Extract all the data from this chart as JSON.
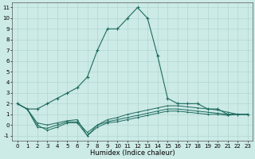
{
  "xlabel": "Humidex (Indice chaleur)",
  "x": [
    0,
    1,
    2,
    3,
    4,
    5,
    6,
    7,
    8,
    9,
    10,
    11,
    12,
    13,
    14,
    15,
    16,
    17,
    18,
    19,
    20,
    21,
    22,
    23
  ],
  "y_main": [
    2,
    1.5,
    1.5,
    2.0,
    2.5,
    3.0,
    3.5,
    4.5,
    7.0,
    9.0,
    9.0,
    10.0,
    11.0,
    10.0,
    6.5,
    2.5,
    2.0,
    2.0,
    2.0,
    1.5,
    1.5,
    1.0,
    1.0,
    1.0
  ],
  "y_line2": [
    2,
    1.5,
    0.2,
    0.0,
    0.2,
    0.4,
    0.5,
    -1.0,
    0.0,
    0.5,
    0.7,
    1.0,
    1.2,
    1.4,
    1.6,
    1.8,
    1.8,
    1.7,
    1.6,
    1.5,
    1.4,
    1.2,
    1.0,
    1.0
  ],
  "y_line3": [
    2,
    1.5,
    -0.2,
    -0.3,
    0.0,
    0.3,
    0.3,
    -0.7,
    0.0,
    0.3,
    0.5,
    0.7,
    0.9,
    1.1,
    1.3,
    1.5,
    1.5,
    1.4,
    1.3,
    1.2,
    1.1,
    1.0,
    1.0,
    1.0
  ],
  "y_line4": [
    2,
    1.5,
    0.0,
    -0.5,
    -0.2,
    0.2,
    0.2,
    -1.0,
    -0.2,
    0.2,
    0.3,
    0.5,
    0.7,
    0.9,
    1.1,
    1.3,
    1.3,
    1.2,
    1.1,
    1.0,
    1.0,
    0.9,
    1.0,
    1.0
  ],
  "ylim": [
    -1.5,
    11.5
  ],
  "xlim": [
    -0.5,
    23.5
  ],
  "yticks": [
    -1,
    0,
    1,
    2,
    3,
    4,
    5,
    6,
    7,
    8,
    9,
    10,
    11
  ],
  "xticks": [
    0,
    1,
    2,
    3,
    4,
    5,
    6,
    7,
    8,
    9,
    10,
    11,
    12,
    13,
    14,
    15,
    16,
    17,
    18,
    19,
    20,
    21,
    22,
    23
  ],
  "bg_color": "#cceae6",
  "grid_color": "#aad4cf",
  "line_color": "#1e6b5e",
  "tick_fontsize": 5.0,
  "label_fontsize": 6.0
}
